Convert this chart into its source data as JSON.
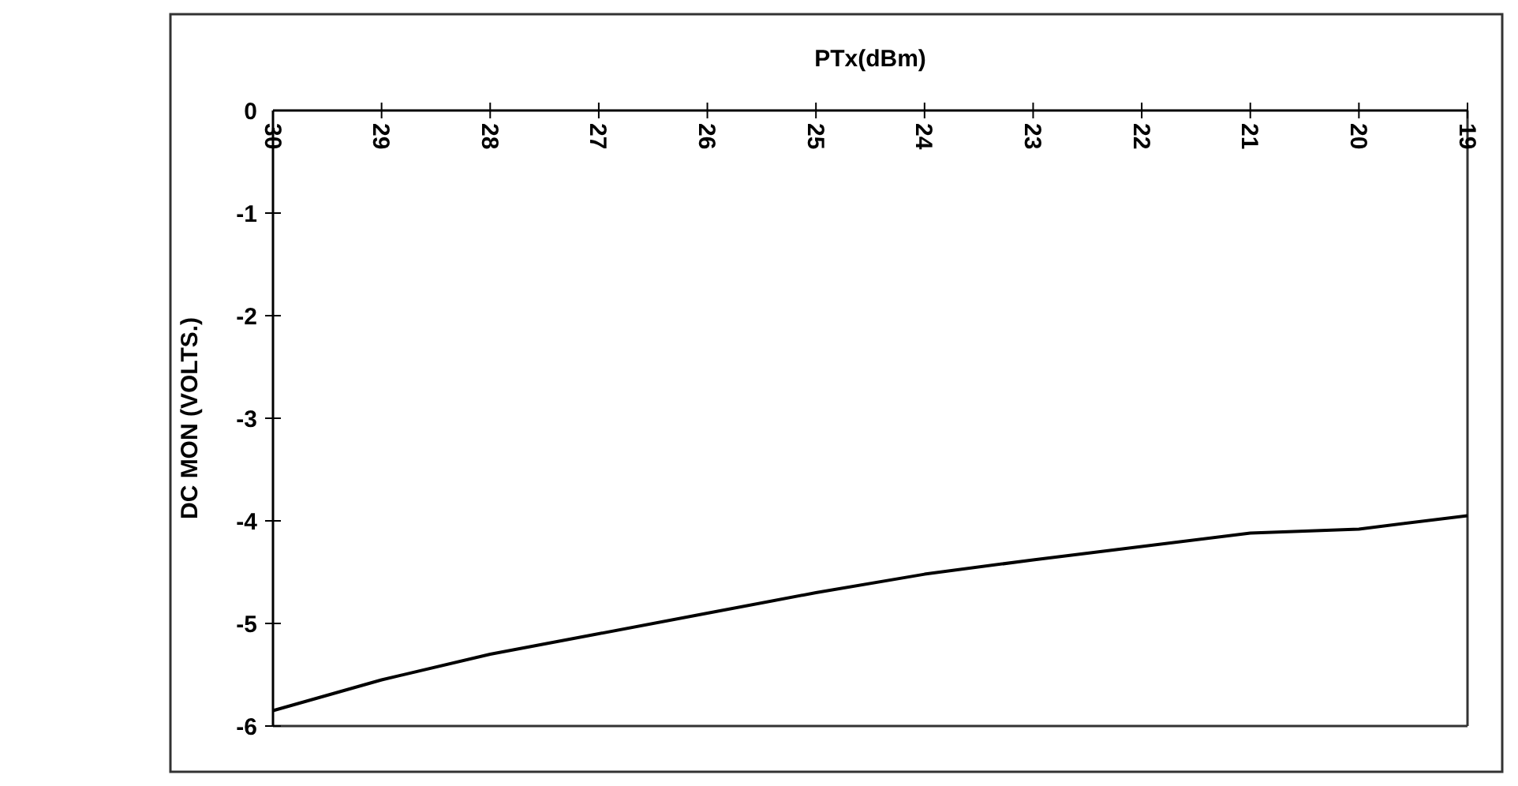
{
  "chart_data": {
    "type": "line",
    "xlabel": "PTx(dBm)",
    "ylabel": "DC MON (VOLTS.)",
    "x": [
      30,
      29,
      28,
      27,
      26,
      25,
      24,
      23,
      22,
      21,
      20,
      19
    ],
    "series": [
      {
        "color": "#000000",
        "values": [
          -5.85,
          -5.55,
          -5.3,
          -5.1,
          -4.9,
          -4.7,
          -4.52,
          -4.38,
          -4.25,
          -4.12,
          -4.08,
          -3.95
        ]
      }
    ],
    "xlim": [
      30,
      19
    ],
    "xticks": [
      30,
      29,
      28,
      27,
      26,
      25,
      24,
      23,
      22,
      21,
      20,
      19
    ],
    "ylim": [
      -6,
      0
    ],
    "yticks": [
      -6,
      -5,
      -4,
      -3,
      -2,
      -1,
      0
    ],
    "grid": false,
    "marker": "none",
    "line_style": "solid"
  }
}
